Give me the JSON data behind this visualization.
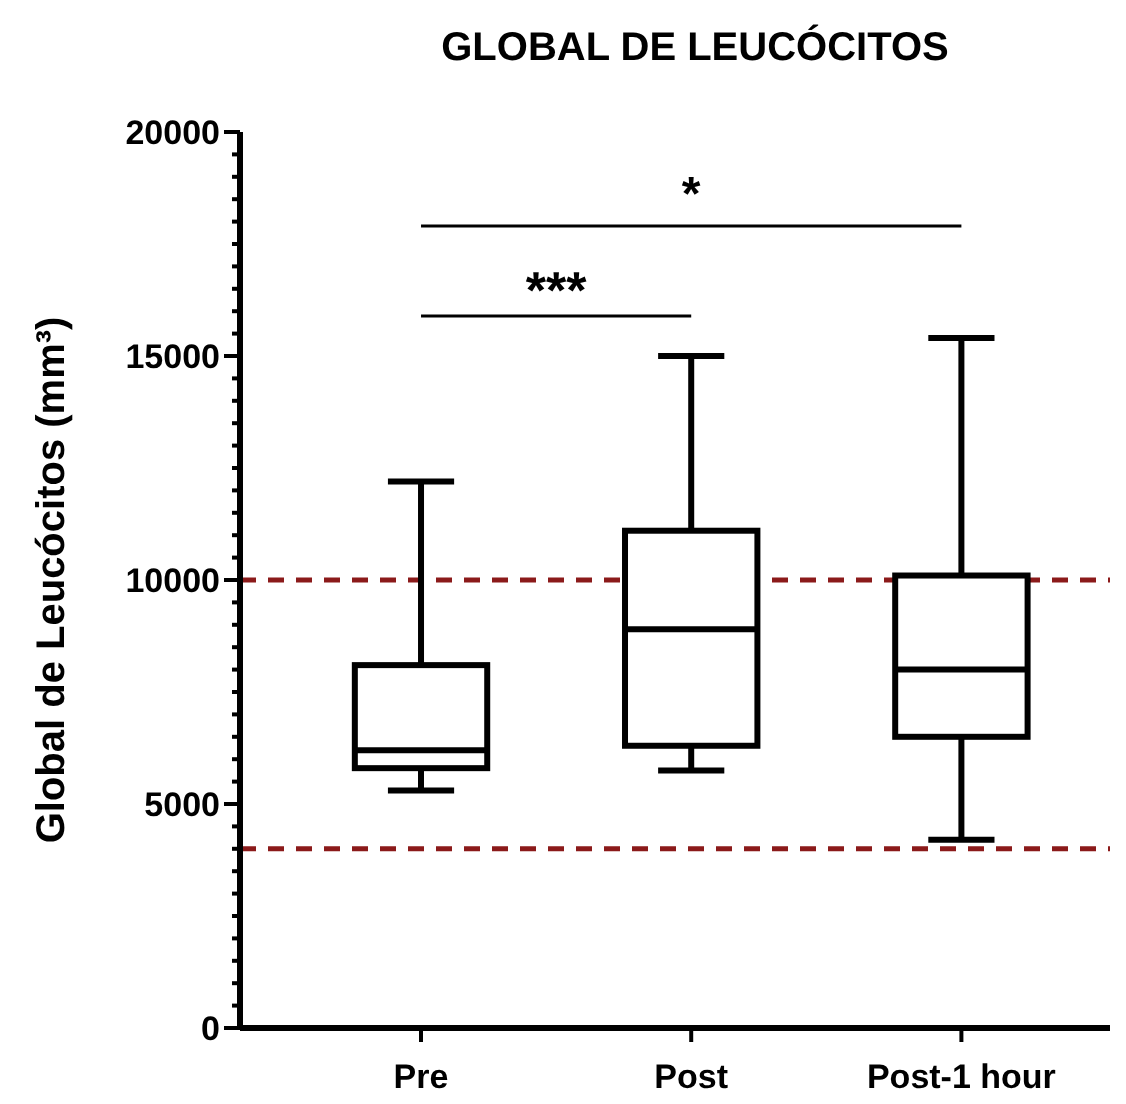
{
  "chart_data": {
    "type": "box",
    "title": "GLOBAL DE LEUCÓCITOS",
    "ylabel": "Global de Leucócitos (mm³)",
    "categories": [
      "Pre",
      "Post",
      "Post-1 hour"
    ],
    "boxes": [
      {
        "low": 5300,
        "q1": 5800,
        "median": 6200,
        "q3": 8100,
        "high": 12200
      },
      {
        "low": 5750,
        "q1": 6300,
        "median": 8900,
        "q3": 11100,
        "high": 15000
      },
      {
        "low": 4200,
        "q1": 6500,
        "median": 8000,
        "q3": 10100,
        "high": 15400
      }
    ],
    "ylim": [
      0,
      20000
    ],
    "yticks": [
      0,
      {
        "value": 500,
        "label": null
      },
      {
        "value": 1000,
        "label": null
      },
      {
        "value": 1500,
        "label": null
      },
      {
        "value": 2000,
        "label": null
      },
      {
        "value": 2500,
        "label": null
      },
      {
        "value": 3000,
        "label": null
      },
      {
        "value": 3500,
        "label": null
      },
      {
        "value": 4000,
        "label": null
      },
      {
        "value": 4500,
        "label": null
      },
      5000,
      {
        "value": 5500,
        "label": null
      },
      {
        "value": 6000,
        "label": null
      },
      {
        "value": 6500,
        "label": null
      },
      {
        "value": 7000,
        "label": null
      },
      {
        "value": 7500,
        "label": null
      },
      {
        "value": 8000,
        "label": null
      },
      {
        "value": 8500,
        "label": null
      },
      {
        "value": 9000,
        "label": null
      },
      {
        "value": 9500,
        "label": null
      },
      10000,
      {
        "value": 10500,
        "label": null
      },
      {
        "value": 11000,
        "label": null
      },
      {
        "value": 11500,
        "label": null
      },
      {
        "value": 12000,
        "label": null
      },
      {
        "value": 12500,
        "label": null
      },
      {
        "value": 13000,
        "label": null
      },
      {
        "value": 13500,
        "label": null
      },
      {
        "value": 14000,
        "label": null
      },
      {
        "value": 14500,
        "label": null
      },
      15000,
      {
        "value": 15500,
        "label": null
      },
      {
        "value": 16000,
        "label": null
      },
      {
        "value": 16500,
        "label": null
      },
      {
        "value": 17000,
        "label": null
      },
      {
        "value": 17500,
        "label": null
      },
      {
        "value": 18000,
        "label": null
      },
      {
        "value": 18500,
        "label": null
      },
      {
        "value": 19000,
        "label": null
      },
      {
        "value": 19500,
        "label": null
      },
      20000
    ],
    "ref_lines": [
      {
        "axis": "y",
        "value": 10000,
        "color": "#8b1a1a",
        "line_style": "dashed"
      },
      {
        "axis": "y",
        "value": 4000,
        "color": "#8b1a1a",
        "line_style": "dashed"
      }
    ],
    "annotations": [
      "***",
      "*"
    ],
    "grid": false
  }
}
